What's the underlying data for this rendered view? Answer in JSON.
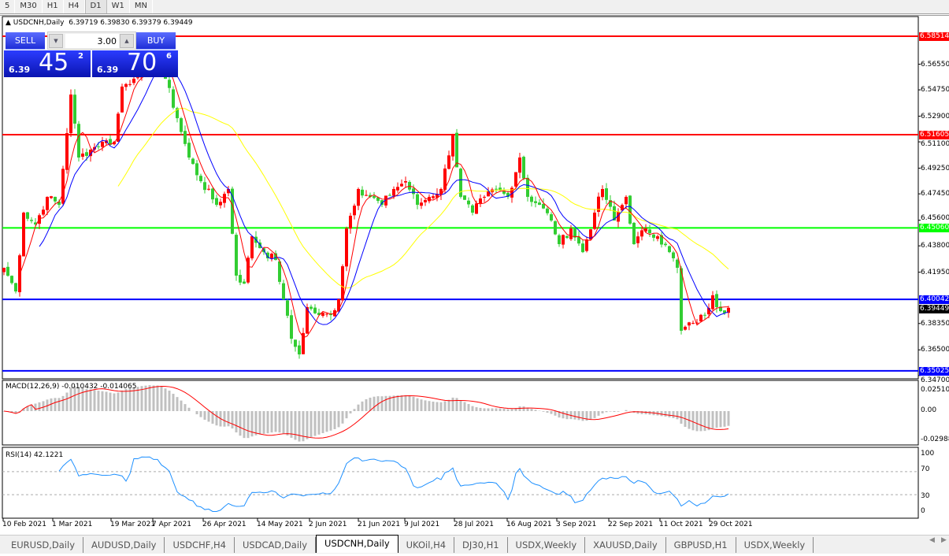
{
  "toolbar": {
    "timeframes": [
      "5",
      "M30",
      "H1",
      "H4",
      "D1",
      "W1",
      "MN"
    ],
    "active": "D1"
  },
  "chart": {
    "symbol_header": "USDCNH,Daily",
    "ohlc": "6.39719 6.39830 6.39379 6.39449",
    "price_axis": [
      "6.56550",
      "6.54750",
      "6.52900",
      "6.51100",
      "6.49250",
      "6.47450",
      "6.45600",
      "6.43800",
      "6.41950",
      "6.38350",
      "6.36500",
      "6.34700"
    ],
    "hlines": [
      {
        "price": 6.58514,
        "label": "6.58514",
        "color": "#ff0000"
      },
      {
        "price": 6.51605,
        "label": "6.51605",
        "color": "#ff0000"
      },
      {
        "price": 6.4506,
        "label": "6.45060",
        "color": "#00ff00"
      },
      {
        "price": 6.40042,
        "label": "6.40042",
        "color": "#0000ff"
      },
      {
        "price": 6.35025,
        "label": "6.35025",
        "color": "#0000ff"
      }
    ],
    "current_price": {
      "label": "6.39449",
      "color": "#000000"
    },
    "close_waypoints": [
      6.4226,
      6.406,
      6.4613,
      6.453,
      6.4724,
      6.4668,
      6.5442,
      6.5,
      6.5055,
      6.511,
      6.511,
      6.5498,
      6.5553,
      6.5663,
      6.5718,
      6.5553,
      6.5276,
      6.5,
      6.4834,
      6.4668,
      6.4779,
      6.4171,
      6.4115,
      6.4447,
      6.4336,
      6.4281,
      6.4005,
      6.3728,
      6.3618,
      6.395,
      6.3894,
      6.3894,
      6.4005,
      6.4502,
      6.4779,
      6.4724,
      6.4668,
      6.4779,
      6.4834,
      6.4668,
      6.4724,
      6.4779,
      6.5166,
      6.4724,
      6.4613,
      6.4724,
      6.4779,
      6.4724,
      6.5,
      6.4724,
      6.4668,
      6.4558,
      6.4392,
      6.4502,
      6.4336,
      6.4613,
      6.4779,
      6.4558,
      6.4724,
      6.4392,
      6.4502,
      6.4447,
      6.4336,
      6.4226,
      6.3784,
      6.3839,
      6.3894,
      6.4033,
      6.3922,
      6.39449
    ],
    "colors": {
      "up_candle": "#ff0000",
      "down_candle": "#32cd32",
      "ma_fast": "#ff0000",
      "ma_mid": "#0000ff",
      "ma_slow": "#ffff00",
      "rsi": "#1e90ff",
      "macd_hist": "#c0c0c0",
      "macd_signal": "#ff0000"
    },
    "dates": [
      "10 Feb 2021",
      "1 Mar 2021",
      "19 Mar 2021",
      "7 Apr 2021",
      "26 Apr 2021",
      "14 May 2021",
      "2 Jun 2021",
      "21 Jun 2021",
      "9 Jul 2021",
      "28 Jul 2021",
      "16 Aug 2021",
      "3 Sep 2021",
      "22 Sep 2021",
      "11 Oct 2021",
      "29 Oct 2021"
    ]
  },
  "trade": {
    "sell_label": "SELL",
    "buy_label": "BUY",
    "lot": "3.00",
    "sell_price": {
      "prefix": "6.39",
      "big": "45",
      "sup": "2"
    },
    "buy_price": {
      "prefix": "6.39",
      "big": "70",
      "sup": "6"
    }
  },
  "macd": {
    "label": "MACD(12,26,9) -0.010432 -0.014065",
    "axis": [
      "0.025108",
      "0.00",
      "-0.02988"
    ]
  },
  "rsi": {
    "label": "RSI(14) 42.1221",
    "axis": [
      "100",
      "70",
      "30",
      "0"
    ]
  },
  "tabs": [
    "EURUSD,Daily",
    "AUDUSD,Daily",
    "USDCHF,H4",
    "USDCAD,Daily",
    "USDCNH,Daily",
    "UKOil,H4",
    "DJ30,H1",
    "USDX,Weekly",
    "XAUUSD,Daily",
    "GBPUSD,H1",
    "USDX,Weekly"
  ],
  "active_tab": "USDCNH,Daily"
}
